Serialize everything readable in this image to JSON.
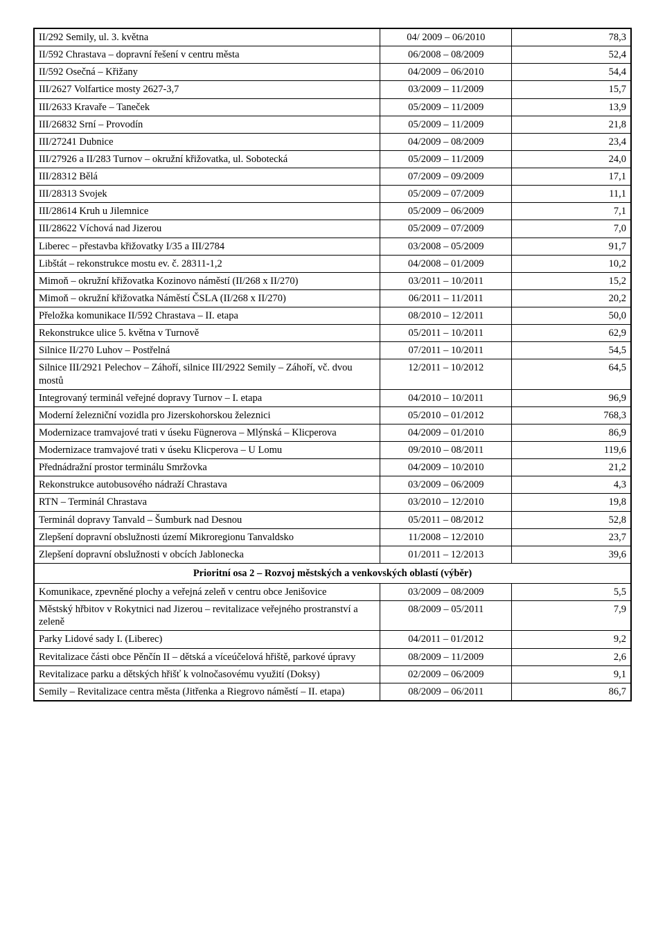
{
  "table": {
    "rows": [
      {
        "name": "II/292 Semily, ul. 3. května",
        "dates": "04/ 2009 – 06/2010",
        "val": "78,3"
      },
      {
        "name": "II/592 Chrastava – dopravní řešení v centru města",
        "dates": "06/2008 – 08/2009",
        "val": "52,4"
      },
      {
        "name": "II/592 Osečná – Křižany",
        "dates": "04/2009 – 06/2010",
        "val": "54,4"
      },
      {
        "name": "III/2627 Volfartice mosty 2627-3,7",
        "dates": "03/2009 – 11/2009",
        "val": "15,7"
      },
      {
        "name": "III/2633 Kravaře – Taneček",
        "dates": "05/2009 – 11/2009",
        "val": "13,9"
      },
      {
        "name": "III/26832 Srní – Provodín",
        "dates": "05/2009 – 11/2009",
        "val": "21,8"
      },
      {
        "name": "III/27241 Dubnice",
        "dates": "04/2009 – 08/2009",
        "val": "23,4"
      },
      {
        "name": "III/27926 a II/283 Turnov – okružní křižovatka, ul. Sobotecká",
        "dates": "05/2009 – 11/2009",
        "val": "24,0"
      },
      {
        "name": "III/28312 Bělá",
        "dates": "07/2009 – 09/2009",
        "val": "17,1"
      },
      {
        "name": "III/28313 Svojek",
        "dates": "05/2009 – 07/2009",
        "val": "11,1"
      },
      {
        "name": "III/28614 Kruh u Jilemnice",
        "dates": "05/2009 – 06/2009",
        "val": "7,1"
      },
      {
        "name": "III/28622 Víchová nad Jizerou",
        "dates": "05/2009 – 07/2009",
        "val": "7,0"
      },
      {
        "name": "Liberec – přestavba křižovatky I/35 a III/2784",
        "dates": "03/2008 – 05/2009",
        "val": "91,7"
      },
      {
        "name": "Libštát – rekonstrukce mostu ev. č. 28311-1,2",
        "dates": "04/2008 – 01/2009",
        "val": "10,2"
      },
      {
        "name": "Mimoň – okružní křižovatka Kozinovo náměstí (II/268 x II/270)",
        "dates": "03/2011 – 10/2011",
        "val": "15,2"
      },
      {
        "name": "Mimoň – okružní křižovatka Náměstí ČSLA (II/268 x II/270)",
        "dates": "06/2011 – 11/2011",
        "val": "20,2"
      },
      {
        "name": "Přeložka komunikace II/592 Chrastava – II. etapa",
        "dates": "08/2010 – 12/2011",
        "val": "50,0"
      },
      {
        "name": "Rekonstrukce ulice 5. května v Turnově",
        "dates": "05/2011 – 10/2011",
        "val": "62,9"
      },
      {
        "name": "Silnice II/270 Luhov – Postřelná",
        "dates": "07/2011 – 10/2011",
        "val": "54,5"
      },
      {
        "name": "Silnice III/2921 Pelechov – Záhoří, silnice III/2922 Semily – Záhoří, vč. dvou mostů",
        "dates": "12/2011 – 10/2012",
        "val": "64,5"
      },
      {
        "name": "Integrovaný terminál veřejné dopravy Turnov – I. etapa",
        "dates": "04/2010 – 10/2011",
        "val": "96,9"
      },
      {
        "name": "Moderní železniční vozidla pro Jizerskohorskou železnici",
        "dates": "05/2010 – 01/2012",
        "val": "768,3"
      },
      {
        "name": "Modernizace tramvajové trati v úseku Fügnerova – Mlýnská – Klicperova",
        "dates": "04/2009 – 01/2010",
        "val": "86,9"
      },
      {
        "name": "Modernizace tramvajové trati v úseku Klicperova – U Lomu",
        "dates": "09/2010 – 08/2011",
        "val": "119,6"
      },
      {
        "name": "Přednádražní prostor terminálu Smržovka",
        "dates": "04/2009 – 10/2010",
        "val": "21,2"
      },
      {
        "name": "Rekonstrukce autobusového nádraží Chrastava",
        "dates": "03/2009 – 06/2009",
        "val": "4,3"
      },
      {
        "name": "RTN – Terminál Chrastava",
        "dates": "03/2010 – 12/2010",
        "val": "19,8"
      },
      {
        "name": "Terminál dopravy Tanvald – Šumburk nad Desnou",
        "dates": "05/2011 – 08/2012",
        "val": "52,8"
      },
      {
        "name": "Zlepšení dopravní obslužnosti území Mikroregionu Tanvaldsko",
        "dates": "11/2008 – 12/2010",
        "val": "23,7"
      },
      {
        "name": "Zlepšení dopravní obslužnosti v obcích Jablonecka",
        "dates": "01/2011 – 12/2013",
        "val": "39,6"
      }
    ],
    "section2_title": "Prioritní osa 2 – Rozvoj městských a venkovských oblastí (výběr)",
    "rows2": [
      {
        "name": "Komunikace, zpevněné plochy a veřejná zeleň v centru obce Jenišovice",
        "dates": "03/2009 – 08/2009",
        "val": "5,5"
      },
      {
        "name": "Městský hřbitov v Rokytnici nad Jizerou – revitalizace veřejného prostranství a zeleně",
        "dates": "08/2009 – 05/2011",
        "val": "7,9"
      },
      {
        "name": "Parky Lidové sady I. (Liberec)",
        "dates": "04/2011 – 01/2012",
        "val": "9,2"
      },
      {
        "name": "Revitalizace části obce Pěnčín II – dětská a víceúčelová hřiště, parkové úpravy",
        "dates": "08/2009 – 11/2009",
        "val": "2,6"
      },
      {
        "name": "Revitalizace parku a dětských hřišť k volnočasovému využití (Doksy)",
        "dates": "02/2009 – 06/2009",
        "val": "9,1"
      },
      {
        "name": "Semily – Revitalizace centra města (Jitřenka a Riegrovo náměstí – II. etapa)",
        "dates": "08/2009 – 06/2011",
        "val": "86,7"
      }
    ]
  }
}
